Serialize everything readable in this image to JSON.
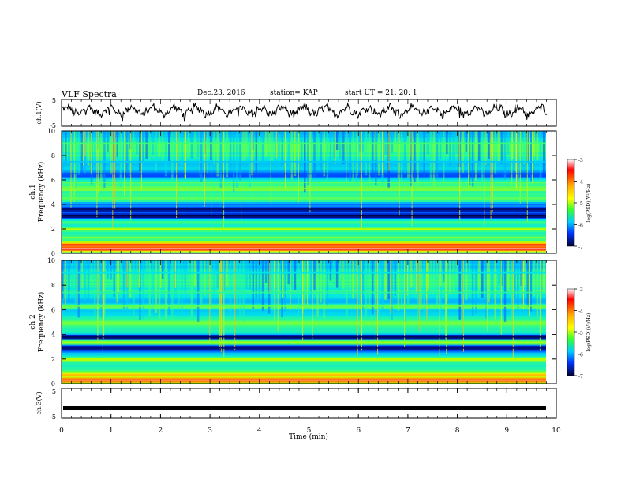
{
  "header": {
    "title": "VLF Spectra",
    "date": "Dec.23, 2016",
    "station": "station= KAP",
    "start": "start  UT =   21: 20: 1"
  },
  "chart_data": [
    {
      "type": "line",
      "ylabel": "ch.1(V)",
      "ylim": [
        -5,
        5
      ],
      "yticks": [
        5,
        -5
      ],
      "xlim": [
        0,
        10
      ],
      "description_values": "noisy oscillating voltage waveform roughly between -2 and 3 V"
    },
    {
      "type": "heatmap",
      "ylabel": "ch.1",
      "ylabel2": "Frequency (kHz)",
      "ylim": [
        0,
        10
      ],
      "yticks": [
        0,
        2,
        4,
        6,
        8,
        10
      ],
      "xlim": [
        0,
        10
      ],
      "colorbar": {
        "label": "log(PSD)(V²/Hz)",
        "ticks": [
          -3,
          -4,
          -5,
          -6,
          -7
        ],
        "range": [
          -7,
          -3
        ]
      },
      "bands": [
        {
          "freq": 0.4,
          "level": -3.2
        },
        {
          "freq": 0.7,
          "level": -3.4
        },
        {
          "freq": 1.3,
          "level": -4.8
        },
        {
          "freq": 2.0,
          "level": -4.6
        },
        {
          "freq": 2.5,
          "level": -5.0
        },
        {
          "freq": 3.1,
          "level": -6.9
        },
        {
          "freq": 3.6,
          "level": -6.7
        },
        {
          "freq": 4.0,
          "level": -6.0
        },
        {
          "freq": 4.5,
          "level": -4.9
        },
        {
          "freq": 5.3,
          "level": -4.8
        },
        {
          "freq": 5.8,
          "level": -4.9
        },
        {
          "freq": 6.5,
          "level": -6.2
        },
        {
          "freq": 7.5,
          "level": -5.6
        },
        {
          "freq": 9.0,
          "level": -5.0
        }
      ]
    },
    {
      "type": "heatmap",
      "ylabel": "ch.2",
      "ylabel2": "Frequency (kHz)",
      "ylim": [
        0,
        10
      ],
      "yticks": [
        0,
        2,
        4,
        6,
        8,
        10
      ],
      "xlim": [
        0,
        10
      ],
      "colorbar": {
        "label": "log(PSD)(V²/Hz)",
        "ticks": [
          -3,
          -4,
          -5,
          -6,
          -7
        ],
        "range": [
          -7,
          -3
        ]
      },
      "bands": [
        {
          "freq": 0.3,
          "level": -3.3
        },
        {
          "freq": 0.7,
          "level": -4.0
        },
        {
          "freq": 1.5,
          "level": -5.2
        },
        {
          "freq": 2.0,
          "level": -4.6
        },
        {
          "freq": 2.9,
          "level": -6.7
        },
        {
          "freq": 3.4,
          "level": -4.7
        },
        {
          "freq": 3.8,
          "level": -6.8
        },
        {
          "freq": 4.9,
          "level": -4.8
        },
        {
          "freq": 6.3,
          "level": -4.9
        },
        {
          "freq": 7.4,
          "level": -5.2
        },
        {
          "freq": 9.0,
          "level": -5.4
        }
      ]
    },
    {
      "type": "line",
      "ylabel": "ch.3(V)",
      "ylim": [
        -5,
        5
      ],
      "yticks": [
        5,
        -5
      ],
      "xlim": [
        0,
        10
      ],
      "xlabel": "Time (min)",
      "xticks": [
        0,
        1,
        2,
        3,
        4,
        5,
        6,
        7,
        8,
        9,
        10
      ],
      "constant_value": -1.5
    }
  ],
  "colors": {
    "axis": "#000000",
    "trace": "#000000"
  }
}
